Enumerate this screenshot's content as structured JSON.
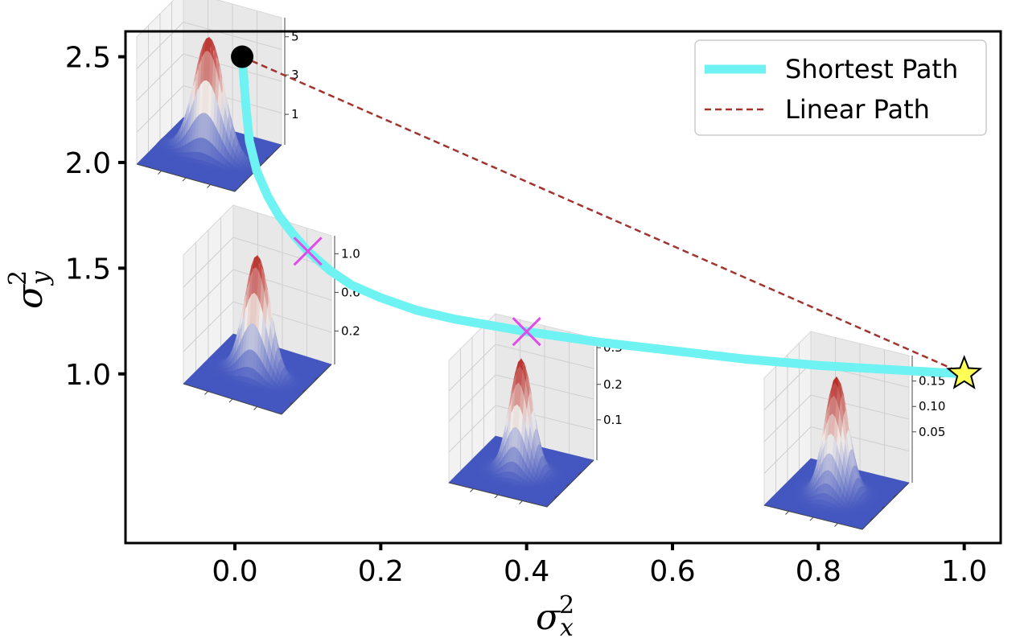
{
  "chart_data": {
    "type": "line",
    "xlabel": {
      "base": "σ",
      "sub": "x",
      "sup": "2"
    },
    "ylabel": {
      "base": "σ",
      "sub": "y",
      "sup": "2"
    },
    "xlim": [
      -0.15,
      1.05
    ],
    "ylim": [
      0.2,
      2.62
    ],
    "x_ticks": [
      0.0,
      0.2,
      0.4,
      0.6,
      0.8,
      1.0
    ],
    "x_tick_labels": [
      "0.0",
      "0.2",
      "0.4",
      "0.6",
      "0.8",
      "1.0"
    ],
    "y_ticks": [
      1.0,
      1.5,
      2.0,
      2.5
    ],
    "y_tick_labels": [
      "1.0",
      "1.5",
      "2.0",
      "2.5"
    ],
    "grid": false,
    "legend_position": "top-right",
    "series": [
      {
        "name": "Shortest Path",
        "color": "#6ef2f2",
        "style": "solid",
        "x": [
          0.01,
          0.015,
          0.02,
          0.03,
          0.045,
          0.06,
          0.08,
          0.1,
          0.13,
          0.16,
          0.2,
          0.25,
          0.3,
          0.35,
          0.4,
          0.5,
          0.6,
          0.7,
          0.8,
          0.9,
          1.0
        ],
        "y": [
          2.5,
          2.27,
          2.1,
          1.96,
          1.84,
          1.75,
          1.66,
          1.58,
          1.49,
          1.42,
          1.36,
          1.3,
          1.26,
          1.23,
          1.2,
          1.15,
          1.11,
          1.07,
          1.04,
          1.02,
          1.0
        ]
      },
      {
        "name": "Linear Path",
        "color": "#a0342f",
        "style": "dashed",
        "x": [
          0.01,
          1.0
        ],
        "y": [
          2.5,
          1.0
        ]
      }
    ],
    "markers": [
      {
        "type": "start-circle",
        "x": 0.01,
        "y": 2.5,
        "color": "#000000"
      },
      {
        "type": "cross",
        "x": 0.1,
        "y": 1.58,
        "color": "#e04ce8"
      },
      {
        "type": "cross",
        "x": 0.4,
        "y": 1.2,
        "color": "#e04ce8"
      },
      {
        "type": "end-star",
        "x": 1.0,
        "y": 1.0,
        "color": "#ffff55"
      }
    ],
    "insets": [
      {
        "name": "inset-start",
        "z_ticks": [
          "5",
          "3",
          "1"
        ],
        "spread_x": 0.35,
        "spread_y": 1.6
      },
      {
        "name": "inset-cross1",
        "z_ticks": [
          "1.0",
          "0.6",
          "0.2"
        ],
        "spread_x": 0.45,
        "spread_y": 1.25
      },
      {
        "name": "inset-cross2",
        "z_ticks": [
          "0.3",
          "0.2",
          "0.1"
        ],
        "spread_x": 0.75,
        "spread_y": 1.0
      },
      {
        "name": "inset-end",
        "z_ticks": [
          "0.15",
          "0.10",
          "0.05"
        ],
        "spread_x": 1.0,
        "spread_y": 1.0
      }
    ],
    "colors": {
      "surface_low": "#4457c0",
      "surface_high": "#b5231f",
      "surface_mid": "#f0ece8"
    }
  }
}
